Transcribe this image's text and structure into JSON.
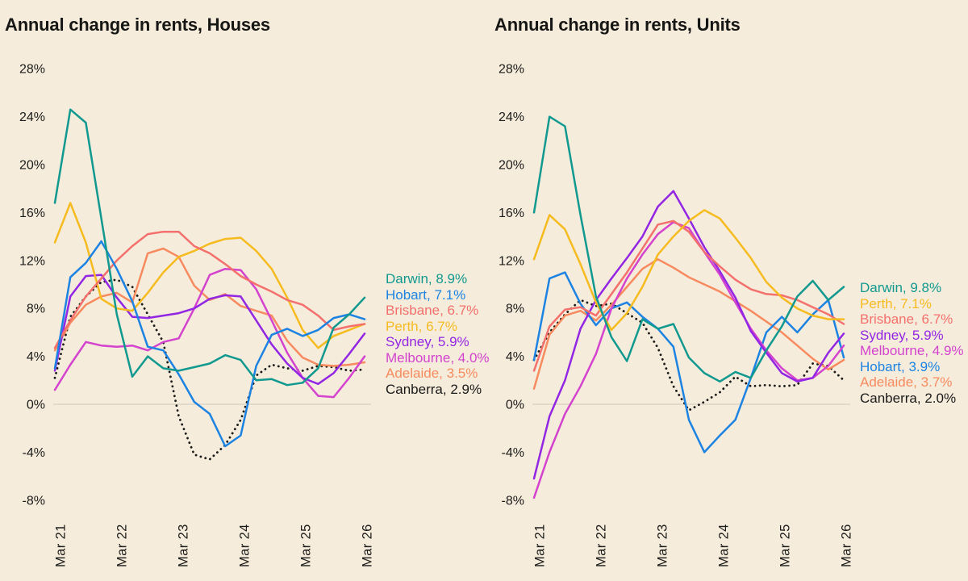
{
  "colors": {
    "background": "#f5ecdc",
    "zero_line": "#dcd3c4",
    "text": "#1b1b19"
  },
  "chart_data": [
    {
      "type": "line",
      "title": "Annual change in rents, Houses",
      "ylim": [
        -8,
        28
      ],
      "y_unit": "%",
      "grid": "zero-line-only",
      "legend_position": "right",
      "y_tick_values": [
        28,
        24,
        20,
        16,
        12,
        8,
        4,
        0,
        -4,
        -8
      ],
      "y_tick_labels": [
        "28%",
        "24%",
        "20%",
        "16%",
        "12%",
        "8%",
        "4%",
        "0%",
        "-4%",
        "-8%"
      ],
      "x_tick_labels": [
        "Mar 21",
        "Mar 22",
        "Mar 23",
        "Mar 24",
        "Mar 25",
        "Mar 26"
      ],
      "sampling": "quarterly estimates from Mar 21 to Mar 26",
      "series": [
        {
          "name": "Darwin",
          "legend_label": "Darwin, 8.9%",
          "final_value": 8.9,
          "color": "#12998f",
          "line_style": "solid",
          "values": [
            16.8,
            24.6,
            23.5,
            15.5,
            7.5,
            2.3,
            4.0,
            3.0,
            2.8,
            3.1,
            3.4,
            4.1,
            3.7,
            2.0,
            2.1,
            1.6,
            1.8,
            3.0,
            6.4,
            7.5,
            8.9
          ]
        },
        {
          "name": "Hobart",
          "legend_label": "Hobart, 7.1%",
          "final_value": 7.1,
          "color": "#1d83e2",
          "line_style": "solid",
          "values": [
            3.0,
            10.6,
            11.8,
            13.6,
            11.3,
            8.6,
            4.8,
            4.5,
            2.5,
            0.2,
            -0.8,
            -3.5,
            -2.6,
            3.2,
            5.8,
            6.3,
            5.7,
            6.2,
            7.2,
            7.5,
            7.1
          ]
        },
        {
          "name": "Brisbane",
          "legend_label": "Brisbane, 6.7%",
          "final_value": 6.7,
          "color": "#f4706c",
          "line_style": "solid",
          "values": [
            4.7,
            7.0,
            9.0,
            10.5,
            12.0,
            13.2,
            14.2,
            14.4,
            14.4,
            13.2,
            12.6,
            11.7,
            10.7,
            10.0,
            9.4,
            8.7,
            8.3,
            7.4,
            6.2,
            6.5,
            6.7
          ]
        },
        {
          "name": "Perth",
          "legend_label": "Perth, 6.7%",
          "final_value": 6.7,
          "color": "#f5bb1f",
          "line_style": "solid",
          "values": [
            13.5,
            16.8,
            13.5,
            8.8,
            8.0,
            7.8,
            9.3,
            11.0,
            12.3,
            12.8,
            13.4,
            13.8,
            13.9,
            12.8,
            11.3,
            8.9,
            6.2,
            4.7,
            5.7,
            6.2,
            6.7
          ]
        },
        {
          "name": "Sydney",
          "legend_label": "Sydney, 5.9%",
          "final_value": 5.9,
          "color": "#9326e3",
          "line_style": "solid",
          "values": [
            2.8,
            9.0,
            10.7,
            10.8,
            8.9,
            7.3,
            7.2,
            7.4,
            7.6,
            8.0,
            8.8,
            9.1,
            9.0,
            7.0,
            5.0,
            3.4,
            2.2,
            1.7,
            2.6,
            4.2,
            5.9
          ]
        },
        {
          "name": "Melbourne",
          "legend_label": "Melbourne, 4.0%",
          "final_value": 4.0,
          "color": "#d443ce",
          "line_style": "solid",
          "values": [
            1.2,
            3.3,
            5.2,
            4.9,
            4.8,
            4.9,
            4.5,
            5.2,
            5.5,
            8.0,
            10.8,
            11.3,
            11.2,
            9.6,
            7.0,
            4.3,
            2.2,
            0.7,
            0.6,
            2.2,
            4.0
          ]
        },
        {
          "name": "Adelaide",
          "legend_label": "Adelaide, 3.5%",
          "final_value": 3.5,
          "color": "#f78b5f",
          "line_style": "solid",
          "values": [
            4.5,
            6.8,
            8.3,
            9.0,
            9.3,
            8.5,
            12.6,
            13.0,
            12.3,
            9.9,
            8.7,
            9.2,
            8.2,
            7.8,
            7.4,
            5.3,
            3.9,
            3.3,
            3.2,
            3.3,
            3.5
          ]
        },
        {
          "name": "Canberra",
          "legend_label": "Canberra, 2.9%",
          "final_value": 2.9,
          "color": "#1a1a18",
          "line_style": "dotted",
          "values": [
            2.2,
            7.3,
            9.0,
            10.2,
            10.4,
            9.8,
            7.5,
            5.2,
            -1.0,
            -4.2,
            -4.6,
            -3.4,
            -1.3,
            2.4,
            3.3,
            3.0,
            2.8,
            3.2,
            3.1,
            2.8,
            2.9
          ]
        }
      ]
    },
    {
      "type": "line",
      "title": "Annual change in rents, Units",
      "ylim": [
        -8,
        28
      ],
      "y_unit": "%",
      "grid": "zero-line-only",
      "legend_position": "right",
      "y_tick_values": [
        28,
        24,
        20,
        16,
        12,
        8,
        4,
        0,
        -4,
        -8
      ],
      "y_tick_labels": [
        "28%",
        "24%",
        "20%",
        "16%",
        "12%",
        "8%",
        "4%",
        "0%",
        "-4%",
        "-8%"
      ],
      "x_tick_labels": [
        "Mar 21",
        "Mar 22",
        "Mar 23",
        "Mar 24",
        "Mar 25",
        "Mar 26"
      ],
      "sampling": "quarterly estimates from Mar 21 to Mar 26",
      "series": [
        {
          "name": "Darwin",
          "legend_label": "Darwin, 9.8%",
          "final_value": 9.8,
          "color": "#12998f",
          "line_style": "solid",
          "values": [
            16.0,
            24.0,
            23.2,
            15.8,
            9.0,
            5.6,
            3.6,
            7.1,
            6.3,
            6.7,
            3.9,
            2.6,
            1.9,
            2.7,
            2.2,
            4.5,
            6.5,
            9.0,
            10.3,
            8.7,
            9.8
          ]
        },
        {
          "name": "Perth",
          "legend_label": "Perth, 7.1%",
          "final_value": 7.1,
          "color": "#f5bb1f",
          "line_style": "solid",
          "values": [
            12.1,
            15.8,
            14.6,
            11.7,
            8.5,
            6.2,
            7.6,
            9.8,
            12.5,
            14.0,
            15.3,
            16.2,
            15.5,
            13.9,
            12.2,
            10.2,
            8.9,
            8.0,
            7.4,
            7.1,
            7.1
          ]
        },
        {
          "name": "Brisbane",
          "legend_label": "Brisbane, 6.7%",
          "final_value": 6.7,
          "color": "#f4706c",
          "line_style": "solid",
          "values": [
            2.8,
            6.5,
            7.9,
            8.1,
            7.4,
            9.2,
            11.0,
            13.0,
            15.0,
            15.3,
            14.4,
            12.7,
            11.5,
            10.4,
            9.6,
            9.2,
            9.1,
            8.7,
            8.1,
            7.5,
            6.7
          ]
        },
        {
          "name": "Sydney",
          "legend_label": "Sydney, 5.9%",
          "final_value": 5.9,
          "color": "#9326e3",
          "line_style": "solid",
          "values": [
            -6.2,
            -1.0,
            2.0,
            6.3,
            8.7,
            10.5,
            12.2,
            14.0,
            16.5,
            17.8,
            15.5,
            13.1,
            11.1,
            8.9,
            6.1,
            4.3,
            2.6,
            1.9,
            2.2,
            4.3,
            5.9
          ]
        },
        {
          "name": "Melbourne",
          "legend_label": "Melbourne, 4.9%",
          "final_value": 4.9,
          "color": "#d443ce",
          "line_style": "solid",
          "values": [
            -7.8,
            -4.0,
            -0.8,
            1.5,
            4.2,
            8.0,
            10.5,
            12.5,
            14.2,
            15.2,
            14.7,
            12.7,
            10.8,
            8.5,
            6.3,
            4.5,
            3.0,
            2.0,
            2.2,
            3.2,
            4.9
          ]
        },
        {
          "name": "Hobart",
          "legend_label": "Hobart, 3.9%",
          "final_value": 3.9,
          "color": "#1d83e2",
          "line_style": "solid",
          "values": [
            3.7,
            10.5,
            11.0,
            8.4,
            6.6,
            8.0,
            8.5,
            7.3,
            6.3,
            4.8,
            -1.3,
            -4.0,
            -2.6,
            -1.3,
            2.2,
            6.0,
            7.3,
            6.0,
            7.5,
            8.7,
            3.9
          ]
        },
        {
          "name": "Adelaide",
          "legend_label": "Adelaide, 3.7%",
          "final_value": 3.7,
          "color": "#f78b5f",
          "line_style": "solid",
          "values": [
            1.3,
            5.8,
            7.4,
            7.8,
            7.0,
            8.3,
            9.8,
            11.3,
            12.1,
            11.4,
            10.6,
            10.0,
            9.4,
            8.6,
            7.8,
            6.9,
            6.0,
            4.9,
            3.8,
            2.9,
            3.7
          ]
        },
        {
          "name": "Canberra",
          "legend_label": "Canberra, 2.0%",
          "final_value": 2.0,
          "color": "#1a1a18",
          "line_style": "dotted",
          "values": [
            3.7,
            6.0,
            7.5,
            8.7,
            8.2,
            8.4,
            7.6,
            6.8,
            4.7,
            1.5,
            -0.5,
            0.2,
            1.0,
            2.3,
            1.5,
            1.6,
            1.5,
            1.6,
            3.4,
            3.2,
            2.0
          ]
        }
      ]
    }
  ]
}
